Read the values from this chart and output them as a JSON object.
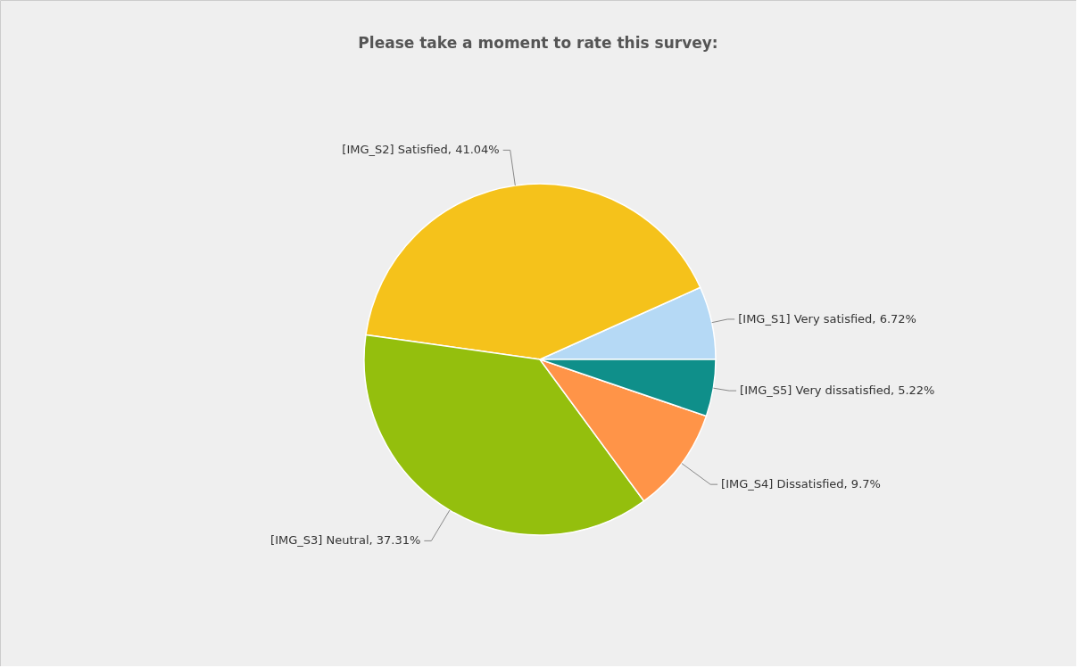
{
  "chart_data": {
    "type": "pie",
    "title": "Please take a moment to rate this survey:",
    "categories": [
      "[IMG_S1] Very satisfied",
      "[IMG_S2] Satisfied",
      "[IMG_S3] Neutral",
      "[IMG_S4] Dissatisfied",
      "[IMG_S5] Very dissatisfied"
    ],
    "values": [
      6.72,
      41.04,
      37.31,
      9.7,
      5.22
    ],
    "value_labels": [
      "6.72%",
      "41.04%",
      "37.31%",
      "9.7%",
      "5.22%"
    ],
    "colors": [
      "#b5d9f5",
      "#f5c21b",
      "#94bf0d",
      "#ff9448",
      "#0f8f8a"
    ],
    "legend": false
  }
}
